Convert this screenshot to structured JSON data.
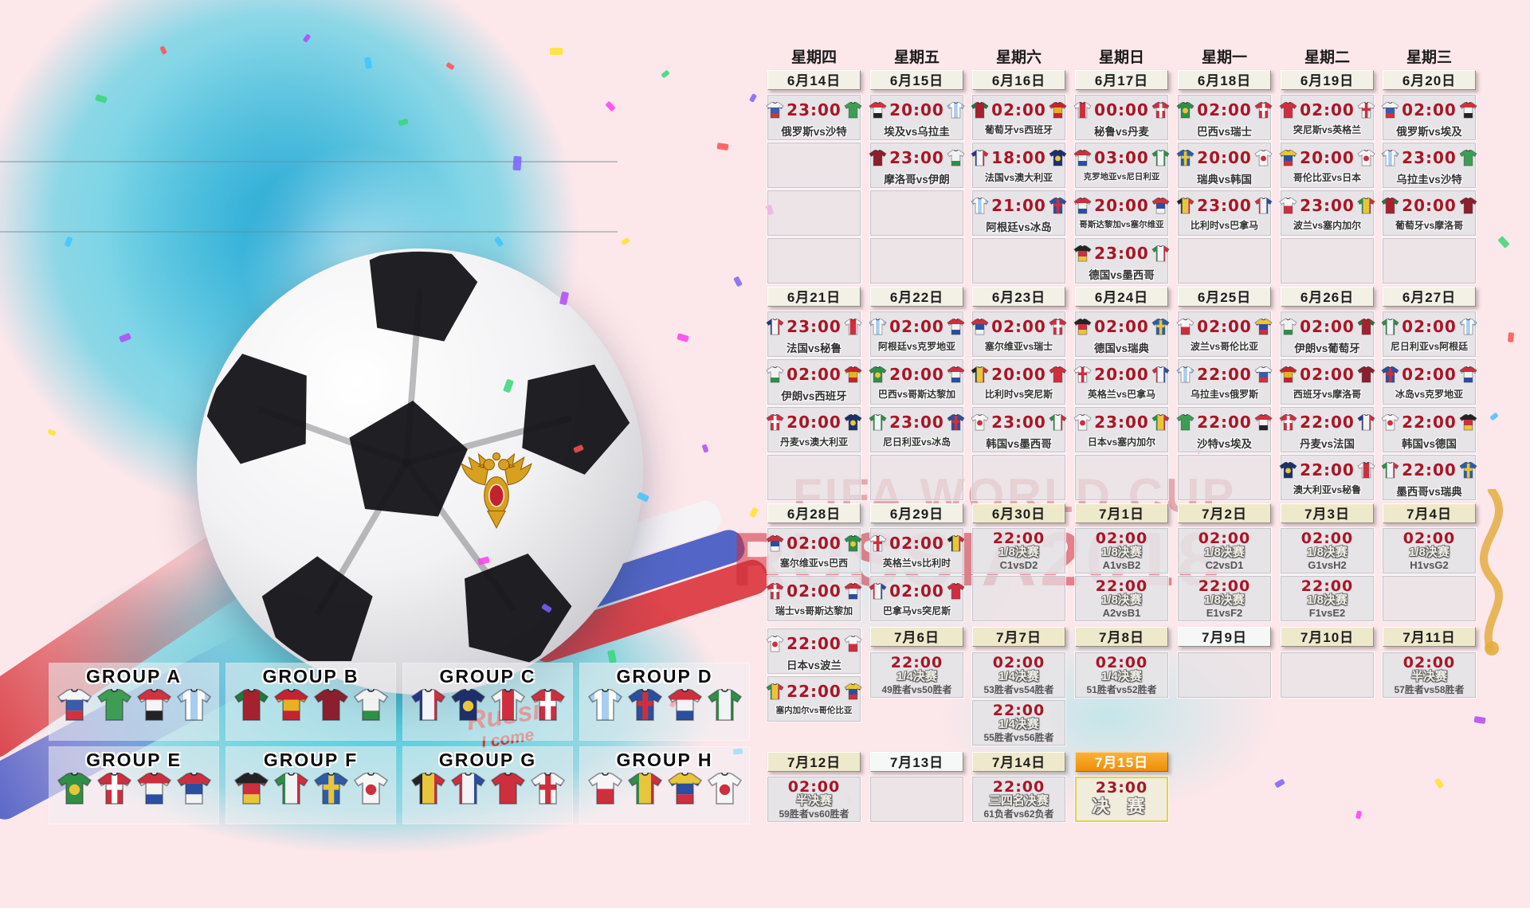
{
  "watermark": {
    "line1": "FIFA WORLD CUP",
    "line2": "RUSSIA2018"
  },
  "ball": {
    "scribble_line1": "Russia",
    "scribble_line2": "I come"
  },
  "weekdays": [
    "星期四",
    "星期五",
    "星期六",
    "星期日",
    "星期一",
    "星期二",
    "星期三"
  ],
  "colors": {
    "time_red": "#a81626",
    "final_orange": "#ee8e06",
    "cell_gray": "#e5e3e6",
    "pink_bg": "#fce7ea",
    "splash_cyan": "#40cce4"
  },
  "jerseys": {
    "俄罗斯": {
      "stripes": [
        "#f4f5f7",
        "#3a5cab",
        "#d2313f"
      ]
    },
    "沙特": {
      "stripes": [
        "#3d9e53"
      ]
    },
    "埃及": {
      "stripes": [
        "#d2313f",
        "#f4f5f7",
        "#232323"
      ]
    },
    "乌拉圭": {
      "stripes": [
        "#a8cdee",
        "#ffffff",
        "#a8cdee",
        "#ffffff",
        "#a8cdee"
      ],
      "dir": "v"
    },
    "葡萄牙": {
      "stripes": [
        "#a6212f"
      ],
      "sleeve": "#1f7a3c"
    },
    "西班牙": {
      "stripes": [
        "#c52331",
        "#e5b31f",
        "#c52331"
      ]
    },
    "摩洛哥": {
      "stripes": [
        "#8c1f2d"
      ]
    },
    "伊朗": {
      "stripes": [
        "#f2f2f2",
        "#f2f2f2",
        "#2f8f46"
      ]
    },
    "法国": {
      "stripes": [
        "#27348b",
        "#f2f3f5",
        "#cf2e3e"
      ],
      "dir": "v"
    },
    "澳大利亚": {
      "stripes": [
        "#1d2f6b"
      ],
      "dot": "#e8c63a"
    },
    "秘鲁": {
      "stripes": [
        "#f4f4f4",
        "#cf2e3e",
        "#f4f4f4"
      ],
      "dir": "v"
    },
    "丹麦": {
      "stripes": [
        "#cf2e3e"
      ],
      "cross": "#ffffff"
    },
    "阿根廷": {
      "stripes": [
        "#a8cdee",
        "#ffffff",
        "#a8cdee",
        "#ffffff",
        "#a8cdee"
      ],
      "dir": "v"
    },
    "冰岛": {
      "stripes": [
        "#2a4fa0"
      ],
      "cross": "#cf2e3e"
    },
    "克罗地亚": {
      "stripes": [
        "#cf2e3e",
        "#f2f3f5",
        "#2a4fa0"
      ]
    },
    "尼日利亚": {
      "stripes": [
        "#2f8f46",
        "#f2f3f5",
        "#2f8f46"
      ],
      "dir": "v"
    },
    "巴西": {
      "stripes": [
        "#2f8f46"
      ],
      "dot": "#e8c63a"
    },
    "瑞士": {
      "stripes": [
        "#cf2e3e"
      ],
      "cross": "#ffffff"
    },
    "哥斯达黎加": {
      "stripes": [
        "#cf2e3e",
        "#f2f3f5",
        "#2a4fa0"
      ]
    },
    "塞尔维亚": {
      "stripes": [
        "#cf2e3e",
        "#2a4fa0",
        "#f2f3f5"
      ]
    },
    "德国": {
      "stripes": [
        "#232323",
        "#cf2e3e",
        "#e8c63a"
      ]
    },
    "墨西哥": {
      "stripes": [
        "#2f8f46",
        "#f2f3f5",
        "#cf2e3e"
      ],
      "dir": "v"
    },
    "瑞典": {
      "stripes": [
        "#2a5cab"
      ],
      "cross": "#e8c63a"
    },
    "韩国": {
      "stripes": [
        "#f6f6f6"
      ],
      "dot": "#cf2e3e"
    },
    "比利时": {
      "stripes": [
        "#232323",
        "#e8c63a",
        "#cf2e3e"
      ],
      "dir": "v"
    },
    "巴拿马": {
      "stripes": [
        "#cf2e3e",
        "#f2f3f5",
        "#2a4fa0"
      ],
      "dir": "v"
    },
    "突尼斯": {
      "stripes": [
        "#cf2e3e"
      ]
    },
    "英格兰": {
      "stripes": [
        "#f6f6f6"
      ],
      "cross": "#cf2e3e"
    },
    "波兰": {
      "stripes": [
        "#f6f6f6",
        "#cf2e3e"
      ]
    },
    "塞内加尔": {
      "stripes": [
        "#2f8f46",
        "#e8c63a",
        "#cf2e3e"
      ],
      "dir": "v"
    },
    "哥伦比亚": {
      "stripes": [
        "#e8c63a",
        "#2a4fa0",
        "#cf2e3e"
      ]
    },
    "日本": {
      "stripes": [
        "#f6f6f6"
      ],
      "dot": "#cf2e3e"
    }
  },
  "calendar": {
    "dates": [
      {
        "col": 1,
        "slot": "D1",
        "label": "6月14日",
        "variant": "plain"
      },
      {
        "col": 2,
        "slot": "D1",
        "label": "6月15日",
        "variant": "plain"
      },
      {
        "col": 3,
        "slot": "D1",
        "label": "6月16日",
        "variant": "plain"
      },
      {
        "col": 4,
        "slot": "D1",
        "label": "6月17日",
        "variant": "plain"
      },
      {
        "col": 5,
        "slot": "D1",
        "label": "6月18日",
        "variant": "plain"
      },
      {
        "col": 6,
        "slot": "D1",
        "label": "6月19日",
        "variant": "plain"
      },
      {
        "col": 7,
        "slot": "D1",
        "label": "6月20日",
        "variant": "plain"
      },
      {
        "col": 1,
        "slot": "D2",
        "label": "6月21日",
        "variant": "plain"
      },
      {
        "col": 2,
        "slot": "D2",
        "label": "6月22日",
        "variant": "plain"
      },
      {
        "col": 3,
        "slot": "D2",
        "label": "6月23日",
        "variant": "plain"
      },
      {
        "col": 4,
        "slot": "D2",
        "label": "6月24日",
        "variant": "plain"
      },
      {
        "col": 5,
        "slot": "D2",
        "label": "6月25日",
        "variant": "plain"
      },
      {
        "col": 6,
        "slot": "D2",
        "label": "6月26日",
        "variant": "plain"
      },
      {
        "col": 7,
        "slot": "D2",
        "label": "6月27日",
        "variant": "plain"
      },
      {
        "col": 1,
        "slot": "D3",
        "label": "6月28日",
        "variant": "plain"
      },
      {
        "col": 2,
        "slot": "D3",
        "label": "6月29日",
        "variant": "plain"
      },
      {
        "col": 3,
        "slot": "D3",
        "label": "6月30日",
        "variant": "cream"
      },
      {
        "col": 4,
        "slot": "D3",
        "label": "7月1日",
        "variant": "cream"
      },
      {
        "col": 5,
        "slot": "D3",
        "label": "7月2日",
        "variant": "cream"
      },
      {
        "col": 6,
        "slot": "D3",
        "label": "7月3日",
        "variant": "cream"
      },
      {
        "col": 7,
        "slot": "D3",
        "label": "7月4日",
        "variant": "cream"
      },
      {
        "col": 2,
        "slot": "D4",
        "label": "7月6日",
        "variant": "cream"
      },
      {
        "col": 3,
        "slot": "D4",
        "label": "7月7日",
        "variant": "cream"
      },
      {
        "col": 4,
        "slot": "D4",
        "label": "7月8日",
        "variant": "cream"
      },
      {
        "col": 5,
        "slot": "D4",
        "label": "7月9日",
        "variant": "light"
      },
      {
        "col": 6,
        "slot": "D4",
        "label": "7月10日",
        "variant": "cream"
      },
      {
        "col": 7,
        "slot": "D4",
        "label": "7月11日",
        "variant": "cream"
      },
      {
        "col": 1,
        "slot": "D5",
        "label": "7月12日",
        "variant": "cream"
      },
      {
        "col": 2,
        "slot": "D5",
        "label": "7月13日",
        "variant": "light"
      },
      {
        "col": 3,
        "slot": "D5",
        "label": "7月14日",
        "variant": "cream"
      },
      {
        "col": 4,
        "slot": "D5",
        "label": "7月15日",
        "variant": "final"
      }
    ],
    "matches": [
      {
        "col": 1,
        "slot": "R1",
        "time": "23:00",
        "home": "俄罗斯",
        "away": "沙特",
        "label": "俄罗斯vs沙特"
      },
      {
        "col": 2,
        "slot": "R1",
        "time": "20:00",
        "home": "埃及",
        "away": "乌拉圭",
        "label": "埃及vs乌拉圭"
      },
      {
        "col": 2,
        "slot": "R2",
        "time": "23:00",
        "home": "摩洛哥",
        "away": "伊朗",
        "label": "摩洛哥vs伊朗"
      },
      {
        "col": 3,
        "slot": "R1",
        "time": "02:00",
        "home": "葡萄牙",
        "away": "西班牙",
        "label": "葡萄牙vs西班牙"
      },
      {
        "col": 3,
        "slot": "R2",
        "time": "18:00",
        "home": "法国",
        "away": "澳大利亚",
        "label": "法国vs澳大利亚"
      },
      {
        "col": 3,
        "slot": "R3",
        "time": "21:00",
        "home": "阿根廷",
        "away": "冰岛",
        "label": "阿根廷vs冰岛"
      },
      {
        "col": 4,
        "slot": "R1",
        "time": "00:00",
        "home": "秘鲁",
        "away": "丹麦",
        "label": "秘鲁vs丹麦"
      },
      {
        "col": 4,
        "slot": "R2",
        "time": "03:00",
        "home": "克罗地亚",
        "away": "尼日利亚",
        "label": "克罗地亚vs尼日利亚"
      },
      {
        "col": 4,
        "slot": "R3",
        "time": "20:00",
        "home": "哥斯达黎加",
        "away": "塞尔维亚",
        "label": "哥斯达黎加vs塞尔维亚"
      },
      {
        "col": 4,
        "slot": "R4",
        "time": "23:00",
        "home": "德国",
        "away": "墨西哥",
        "label": "德国vs墨西哥"
      },
      {
        "col": 5,
        "slot": "R1",
        "time": "02:00",
        "home": "巴西",
        "away": "瑞士",
        "label": "巴西vs瑞士"
      },
      {
        "col": 5,
        "slot": "R2",
        "time": "20:00",
        "home": "瑞典",
        "away": "韩国",
        "label": "瑞典vs韩国"
      },
      {
        "col": 5,
        "slot": "R3",
        "time": "23:00",
        "home": "比利时",
        "away": "巴拿马",
        "label": "比利时vs巴拿马"
      },
      {
        "col": 6,
        "slot": "R1",
        "time": "02:00",
        "home": "突尼斯",
        "away": "英格兰",
        "label": "突尼斯vs英格兰"
      },
      {
        "col": 6,
        "slot": "R2",
        "time": "20:00",
        "home": "哥伦比亚",
        "away": "日本",
        "label": "哥伦比亚vs日本"
      },
      {
        "col": 6,
        "slot": "R3",
        "time": "23:00",
        "home": "波兰",
        "away": "塞内加尔",
        "label": "波兰vs塞内加尔"
      },
      {
        "col": 7,
        "slot": "R1",
        "time": "02:00",
        "home": "俄罗斯",
        "away": "埃及",
        "label": "俄罗斯vs埃及"
      },
      {
        "col": 7,
        "slot": "R2",
        "time": "23:00",
        "home": "乌拉圭",
        "away": "沙特",
        "label": "乌拉圭vs沙特"
      },
      {
        "col": 7,
        "slot": "R3",
        "time": "20:00",
        "home": "葡萄牙",
        "away": "摩洛哥",
        "label": "葡萄牙vs摩洛哥"
      },
      {
        "col": 1,
        "slot": "R5",
        "time": "23:00",
        "home": "法国",
        "away": "秘鲁",
        "label": "法国vs秘鲁"
      },
      {
        "col": 1,
        "slot": "R6",
        "time": "02:00",
        "home": "伊朗",
        "away": "西班牙",
        "label": "伊朗vs西班牙"
      },
      {
        "col": 1,
        "slot": "R7",
        "time": "20:00",
        "home": "丹麦",
        "away": "澳大利亚",
        "label": "丹麦vs澳大利亚"
      },
      {
        "col": 2,
        "slot": "R5",
        "time": "02:00",
        "home": "阿根廷",
        "away": "克罗地亚",
        "label": "阿根廷vs克罗地亚"
      },
      {
        "col": 2,
        "slot": "R6",
        "time": "20:00",
        "home": "巴西",
        "away": "哥斯达黎加",
        "label": "巴西vs哥斯达黎加"
      },
      {
        "col": 2,
        "slot": "R7",
        "time": "23:00",
        "home": "尼日利亚",
        "away": "冰岛",
        "label": "尼日利亚vs冰岛"
      },
      {
        "col": 3,
        "slot": "R5",
        "time": "02:00",
        "home": "塞尔维亚",
        "away": "瑞士",
        "label": "塞尔维亚vs瑞士"
      },
      {
        "col": 3,
        "slot": "R6",
        "time": "20:00",
        "home": "比利时",
        "away": "突尼斯",
        "label": "比利时vs突尼斯"
      },
      {
        "col": 3,
        "slot": "R7",
        "time": "23:00",
        "home": "韩国",
        "away": "墨西哥",
        "label": "韩国vs墨西哥"
      },
      {
        "col": 4,
        "slot": "R5",
        "time": "02:00",
        "home": "德国",
        "away": "瑞典",
        "label": "德国vs瑞典"
      },
      {
        "col": 4,
        "slot": "R6",
        "time": "20:00",
        "home": "英格兰",
        "away": "巴拿马",
        "label": "英格兰vs巴拿马"
      },
      {
        "col": 4,
        "slot": "R7",
        "time": "23:00",
        "home": "日本",
        "away": "塞内加尔",
        "label": "日本vs塞内加尔"
      },
      {
        "col": 5,
        "slot": "R5",
        "time": "02:00",
        "home": "波兰",
        "away": "哥伦比亚",
        "label": "波兰vs哥伦比亚"
      },
      {
        "col": 5,
        "slot": "R6",
        "time": "22:00",
        "home": "乌拉圭",
        "away": "俄罗斯",
        "label": "乌拉圭vs俄罗斯"
      },
      {
        "col": 5,
        "slot": "R7",
        "time": "22:00",
        "home": "沙特",
        "away": "埃及",
        "label": "沙特vs埃及"
      },
      {
        "col": 6,
        "slot": "R5",
        "time": "02:00",
        "home": "伊朗",
        "away": "葡萄牙",
        "label": "伊朗vs葡萄牙"
      },
      {
        "col": 6,
        "slot": "R6",
        "time": "02:00",
        "home": "西班牙",
        "away": "摩洛哥",
        "label": "西班牙vs摩洛哥"
      },
      {
        "col": 6,
        "slot": "R7",
        "time": "22:00",
        "home": "丹麦",
        "away": "法国",
        "label": "丹麦vs法国"
      },
      {
        "col": 6,
        "slot": "R8",
        "time": "22:00",
        "home": "澳大利亚",
        "away": "秘鲁",
        "label": "澳大利亚vs秘鲁"
      },
      {
        "col": 7,
        "slot": "R5",
        "time": "02:00",
        "home": "尼日利亚",
        "away": "阿根廷",
        "label": "尼日利亚vs阿根廷"
      },
      {
        "col": 7,
        "slot": "R6",
        "time": "02:00",
        "home": "冰岛",
        "away": "克罗地亚",
        "label": "冰岛vs克罗地亚"
      },
      {
        "col": 7,
        "slot": "R7",
        "time": "22:00",
        "home": "韩国",
        "away": "德国",
        "label": "韩国vs德国"
      },
      {
        "col": 7,
        "slot": "R8",
        "time": "22:00",
        "home": "墨西哥",
        "away": "瑞典",
        "label": "墨西哥vs瑞典"
      },
      {
        "col": 1,
        "slot": "R9",
        "time": "02:00",
        "home": "塞尔维亚",
        "away": "巴西",
        "label": "塞尔维亚vs巴西"
      },
      {
        "col": 1,
        "slot": "R10",
        "time": "02:00",
        "home": "瑞士",
        "away": "哥斯达黎加",
        "label": "瑞士vs哥斯达黎加"
      },
      {
        "col": 1,
        "slot": "C1R3",
        "time": "22:00",
        "home": "日本",
        "away": "波兰",
        "label": "日本vs波兰"
      },
      {
        "col": 1,
        "slot": "C1R4",
        "time": "22:00",
        "home": "塞内加尔",
        "away": "哥伦比亚",
        "label": "塞内加尔vs哥伦比亚"
      },
      {
        "col": 2,
        "slot": "R9",
        "time": "02:00",
        "home": "英格兰",
        "away": "比利时",
        "label": "英格兰vs比利时"
      },
      {
        "col": 2,
        "slot": "R10",
        "time": "02:00",
        "home": "巴拿马",
        "away": "突尼斯",
        "label": "巴拿马vs突尼斯"
      }
    ],
    "knockouts": [
      {
        "col": 3,
        "slot": "R9",
        "time": "22:00",
        "stage": "1/8决赛",
        "teams": "C1vsD2"
      },
      {
        "col": 4,
        "slot": "R9",
        "time": "02:00",
        "stage": "1/8决赛",
        "teams": "A1vsB2"
      },
      {
        "col": 4,
        "slot": "R10",
        "time": "22:00",
        "stage": "1/8决赛",
        "teams": "A2vsB1"
      },
      {
        "col": 5,
        "slot": "R9",
        "time": "02:00",
        "stage": "1/8决赛",
        "teams": "C2vsD1"
      },
      {
        "col": 5,
        "slot": "R10",
        "time": "22:00",
        "stage": "1/8决赛",
        "teams": "E1vsF2"
      },
      {
        "col": 6,
        "slot": "R9",
        "time": "02:00",
        "stage": "1/8决赛",
        "teams": "G1vsH2"
      },
      {
        "col": 6,
        "slot": "R10",
        "time": "22:00",
        "stage": "1/8决赛",
        "teams": "F1vsE2"
      },
      {
        "col": 7,
        "slot": "R9",
        "time": "02:00",
        "stage": "1/8决赛",
        "teams": "H1vsG2"
      },
      {
        "col": 2,
        "slot": "R11",
        "time": "22:00",
        "stage": "1/4决赛",
        "teams": "49胜者vs50胜者"
      },
      {
        "col": 3,
        "slot": "R11",
        "time": "02:00",
        "stage": "1/4决赛",
        "teams": "53胜者vs54胜者"
      },
      {
        "col": 3,
        "slot": "R12",
        "time": "22:00",
        "stage": "1/4决赛",
        "teams": "55胜者vs56胜者"
      },
      {
        "col": 4,
        "slot": "R11",
        "time": "02:00",
        "stage": "1/4决赛",
        "teams": "51胜者vs52胜者"
      },
      {
        "col": 7,
        "slot": "R11",
        "time": "02:00",
        "stage": "半决赛",
        "teams": "57胜者vs58胜者"
      },
      {
        "col": 1,
        "slot": "R13",
        "time": "02:00",
        "stage": "半决赛",
        "teams": "59胜者vs60胜者"
      },
      {
        "col": 3,
        "slot": "R13",
        "time": "22:00",
        "stage": "三四名决赛",
        "teams": "61负者vs62负者"
      }
    ],
    "final": {
      "col": 4,
      "slot": "R13",
      "time": "23:00",
      "stage": "决 赛"
    },
    "empties": [
      {
        "col": 1,
        "slot": "R2"
      },
      {
        "col": 1,
        "slot": "R3"
      },
      {
        "col": 1,
        "slot": "R4"
      },
      {
        "col": 2,
        "slot": "R3"
      },
      {
        "col": 2,
        "slot": "R4"
      },
      {
        "col": 3,
        "slot": "R4"
      },
      {
        "col": 5,
        "slot": "R4"
      },
      {
        "col": 6,
        "slot": "R4"
      },
      {
        "col": 7,
        "slot": "R4"
      },
      {
        "col": 1,
        "slot": "R8"
      },
      {
        "col": 2,
        "slot": "R8"
      },
      {
        "col": 3,
        "slot": "R8"
      },
      {
        "col": 4,
        "slot": "R8"
      },
      {
        "col": 5,
        "slot": "R8"
      },
      {
        "col": 3,
        "slot": "R10"
      },
      {
        "col": 7,
        "slot": "R10"
      },
      {
        "col": 5,
        "slot": "R11"
      },
      {
        "col": 6,
        "slot": "R11"
      },
      {
        "col": 2,
        "slot": "R13"
      }
    ]
  },
  "groups": [
    {
      "name": "GROUP A",
      "teams": [
        "俄罗斯",
        "沙特",
        "埃及",
        "乌拉圭"
      ]
    },
    {
      "name": "GROUP B",
      "teams": [
        "葡萄牙",
        "西班牙",
        "摩洛哥",
        "伊朗"
      ]
    },
    {
      "name": "GROUP C",
      "teams": [
        "法国",
        "澳大利亚",
        "秘鲁",
        "丹麦"
      ]
    },
    {
      "name": "GROUP D",
      "teams": [
        "阿根廷",
        "冰岛",
        "克罗地亚",
        "尼日利亚"
      ]
    },
    {
      "name": "GROUP E",
      "teams": [
        "巴西",
        "瑞士",
        "哥斯达黎加",
        "塞尔维亚"
      ]
    },
    {
      "name": "GROUP F",
      "teams": [
        "德国",
        "墨西哥",
        "瑞典",
        "韩国"
      ]
    },
    {
      "name": "GROUP G",
      "teams": [
        "比利时",
        "巴拿马",
        "突尼斯",
        "英格兰"
      ]
    },
    {
      "name": "GROUP H",
      "teams": [
        "波兰",
        "塞内加尔",
        "哥伦比亚",
        "日本"
      ]
    }
  ]
}
